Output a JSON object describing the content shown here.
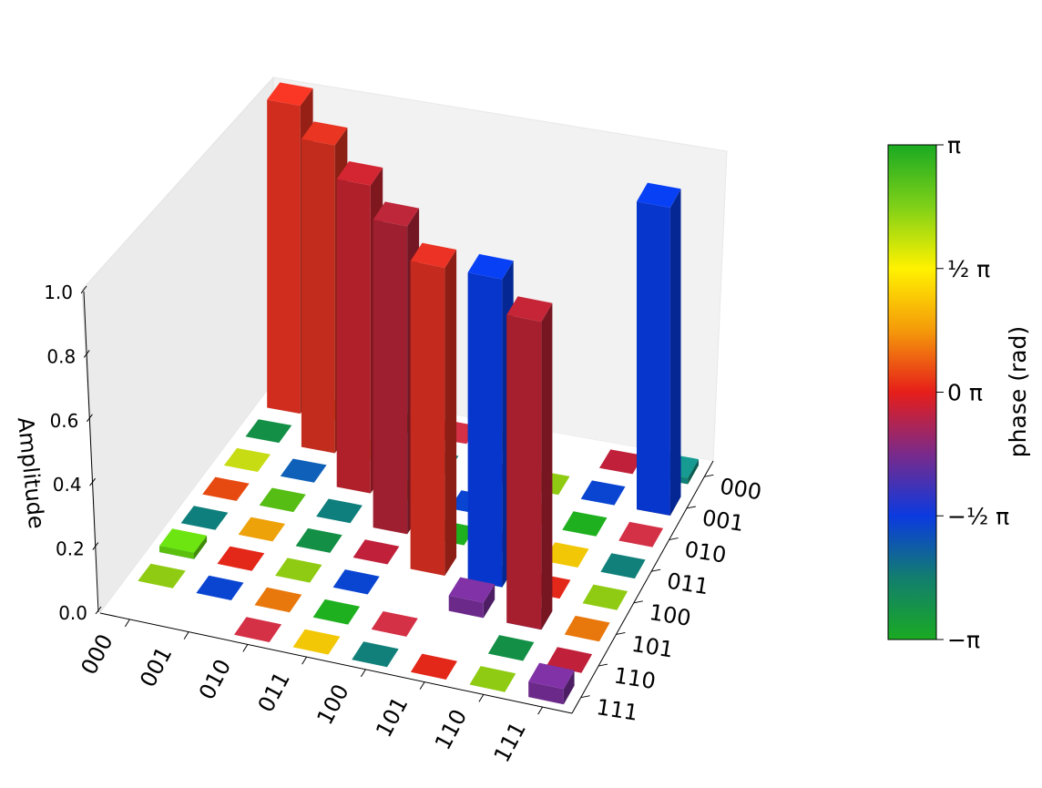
{
  "chart_data": {
    "type": "bar3d",
    "row_labels": [
      "000",
      "001",
      "010",
      "011",
      "100",
      "101",
      "110",
      "111"
    ],
    "col_labels": [
      "000",
      "001",
      "010",
      "011",
      "100",
      "101",
      "110",
      "111"
    ],
    "zlabel": "Amplitude",
    "zlim": [
      0,
      1.0
    ],
    "z_ticks": [
      "0.0",
      "0.2",
      "0.4",
      "0.6",
      "0.8",
      "1.0"
    ],
    "bars": [
      {
        "row": 0,
        "col": 0,
        "value": 1.0,
        "phase": 0.05,
        "color": "#d02d1e"
      },
      {
        "row": 1,
        "col": 1,
        "value": 1.0,
        "phase": 0.1,
        "color": "#c22c1c"
      },
      {
        "row": 2,
        "col": 2,
        "value": 1.0,
        "phase": -0.05,
        "color": "#b0202a"
      },
      {
        "row": 3,
        "col": 3,
        "value": 1.0,
        "phase": -0.2,
        "color": "#9e2030"
      },
      {
        "row": 4,
        "col": 4,
        "value": 1.0,
        "phase": 0.08,
        "color": "#c42a1e"
      },
      {
        "row": 4,
        "col": 5,
        "value": 1.0,
        "phase": -0.5,
        "color": "#0736cc"
      },
      {
        "row": 5,
        "col": 6,
        "value": 1.0,
        "phase": -0.1,
        "color": "#a51f2e"
      },
      {
        "row": 1,
        "col": 7,
        "value": 1.0,
        "phase": -0.5,
        "color": "#0736cc"
      },
      {
        "row": 5,
        "col": 5,
        "value": 0.05,
        "phase": -0.3,
        "color": "#6b2a8a"
      },
      {
        "row": 7,
        "col": 7,
        "value": 0.05,
        "phase": -0.3,
        "color": "#6b2a8a"
      },
      {
        "row": 0,
        "col": 7,
        "value": 0.02,
        "phase": -0.8,
        "color": "#12807a"
      },
      {
        "row": 5,
        "col": 0,
        "value": 0.02,
        "phase": 0.8,
        "color": "#5bbf0e"
      }
    ],
    "small_tile_colors": [
      "#c0203a",
      "#e32718",
      "#e64a10",
      "#e8770c",
      "#eda20a",
      "#f2c705",
      "#c7dc12",
      "#8fcb12",
      "#56bd14",
      "#1fb01f",
      "#139045",
      "#12807a",
      "#0e60b8",
      "#0a45d2",
      "#0e7f7c",
      "#d43046"
    ],
    "colorbar": {
      "label": "phase (rad)",
      "ticks": [
        "π",
        "½ π",
        "0 π",
        "−½ π",
        "−π"
      ],
      "stops": [
        "#1aaa22",
        "#c8e110",
        "#fff200",
        "#ffb000",
        "#e61e1a",
        "#8a2870",
        "#0b3ae0",
        "#0e7060",
        "#1aaa22"
      ]
    }
  }
}
